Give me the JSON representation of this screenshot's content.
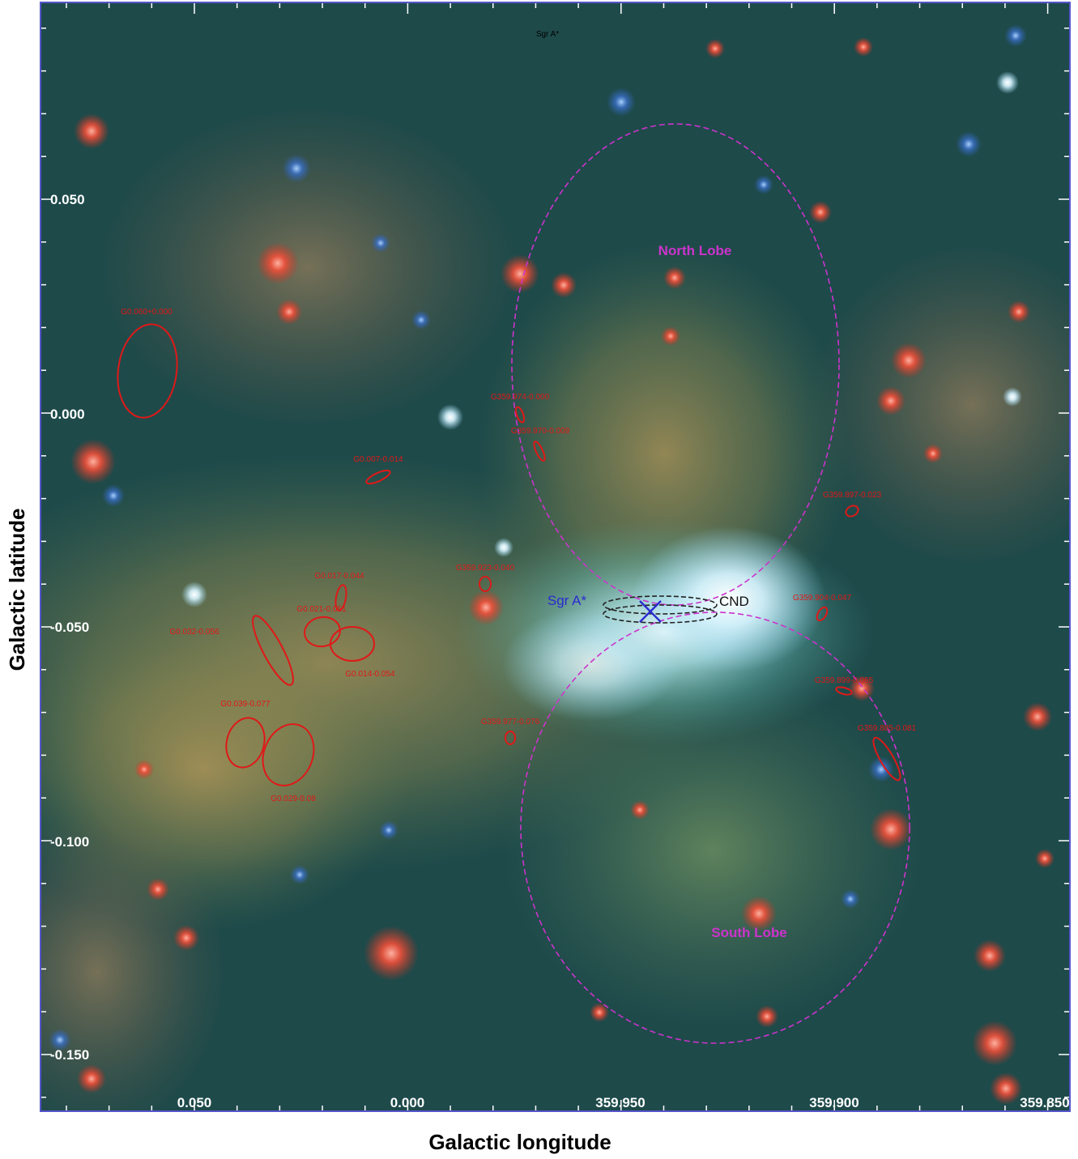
{
  "axes": {
    "xlabel": "Galactic longitude",
    "ylabel": "Galactic latitude",
    "x_ticks": [
      "0.050",
      "0.000",
      "359.950",
      "359.900",
      "359.850"
    ],
    "y_ticks": [
      "0.050",
      "0.000",
      "-0.050",
      "-0.100",
      "-0.150"
    ]
  },
  "colors": {
    "frame": "#5555cc",
    "sources": "#e01818",
    "lobes": "#cc33cc",
    "cnd": "#222222",
    "sgr_marker": "#2a2ad0"
  },
  "labels": {
    "top": "Sgr A*",
    "sgr": "Sgr A*",
    "cnd": "CND",
    "north": "North Lobe",
    "south": "South Lobe"
  },
  "sources": [
    "G0.060+0.000",
    "G359.974-0.000",
    "G359.970-0.009",
    "G0.007-0.014",
    "G359.897-0.023",
    "G359.923-0.040",
    "G0.017-0.044",
    "G0.021-0.051",
    "G0.032-0.056",
    "G0.014-0.054",
    "G359.904-0.047",
    "G359.899-0.065",
    "G0.039-0.077",
    "G359.977-0.076",
    "G359.885-0.081",
    "G0.029-0.08"
  ]
}
